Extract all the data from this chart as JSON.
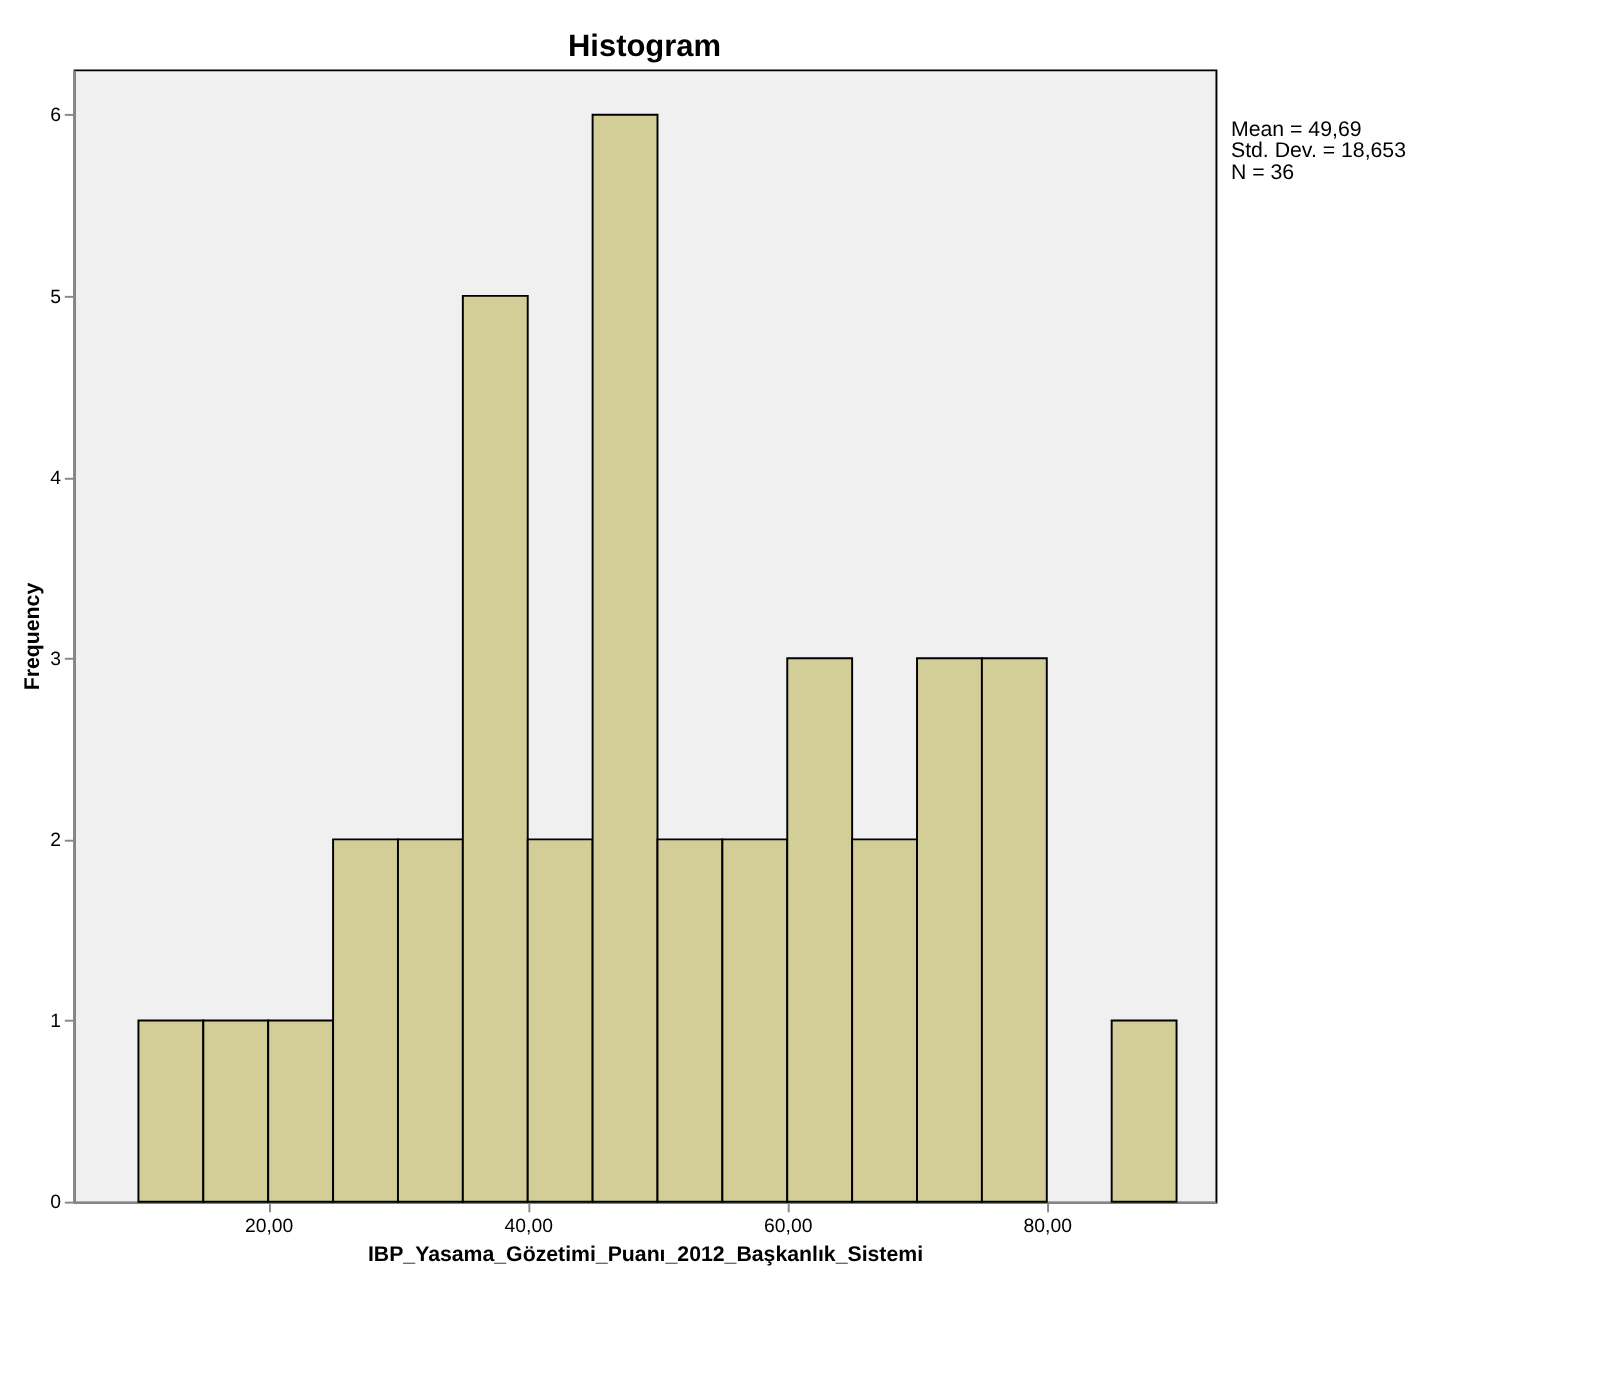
{
  "chart_data": {
    "type": "histogram",
    "title": "Histogram",
    "xlabel": "IBP_Yasama_Gözetimi_Puanı_2012_Başkanlık_Sistemi",
    "ylabel": "Frequency",
    "bins": [
      10,
      15,
      20,
      25,
      30,
      35,
      40,
      45,
      50,
      55,
      60,
      65,
      70,
      75,
      80,
      85,
      90
    ],
    "values": [
      1,
      1,
      1,
      2,
      2,
      5,
      2,
      6,
      2,
      2,
      3,
      2,
      3,
      3,
      0,
      1
    ],
    "color": "#d3ce97",
    "xlim": [
      5,
      93
    ],
    "xticks": [
      {
        "value": 20,
        "label": "20,00"
      },
      {
        "value": 40,
        "label": "40,00"
      },
      {
        "value": 60,
        "label": "60,00"
      },
      {
        "value": 80,
        "label": "80,00"
      }
    ],
    "ylim": [
      0,
      6.25
    ],
    "yticks": [
      0,
      1,
      2,
      3,
      4,
      5,
      6
    ],
    "grid": false,
    "annotations": [
      "Mean = 49,69",
      "Std. Dev. = 18,653",
      "N = 36"
    ]
  }
}
